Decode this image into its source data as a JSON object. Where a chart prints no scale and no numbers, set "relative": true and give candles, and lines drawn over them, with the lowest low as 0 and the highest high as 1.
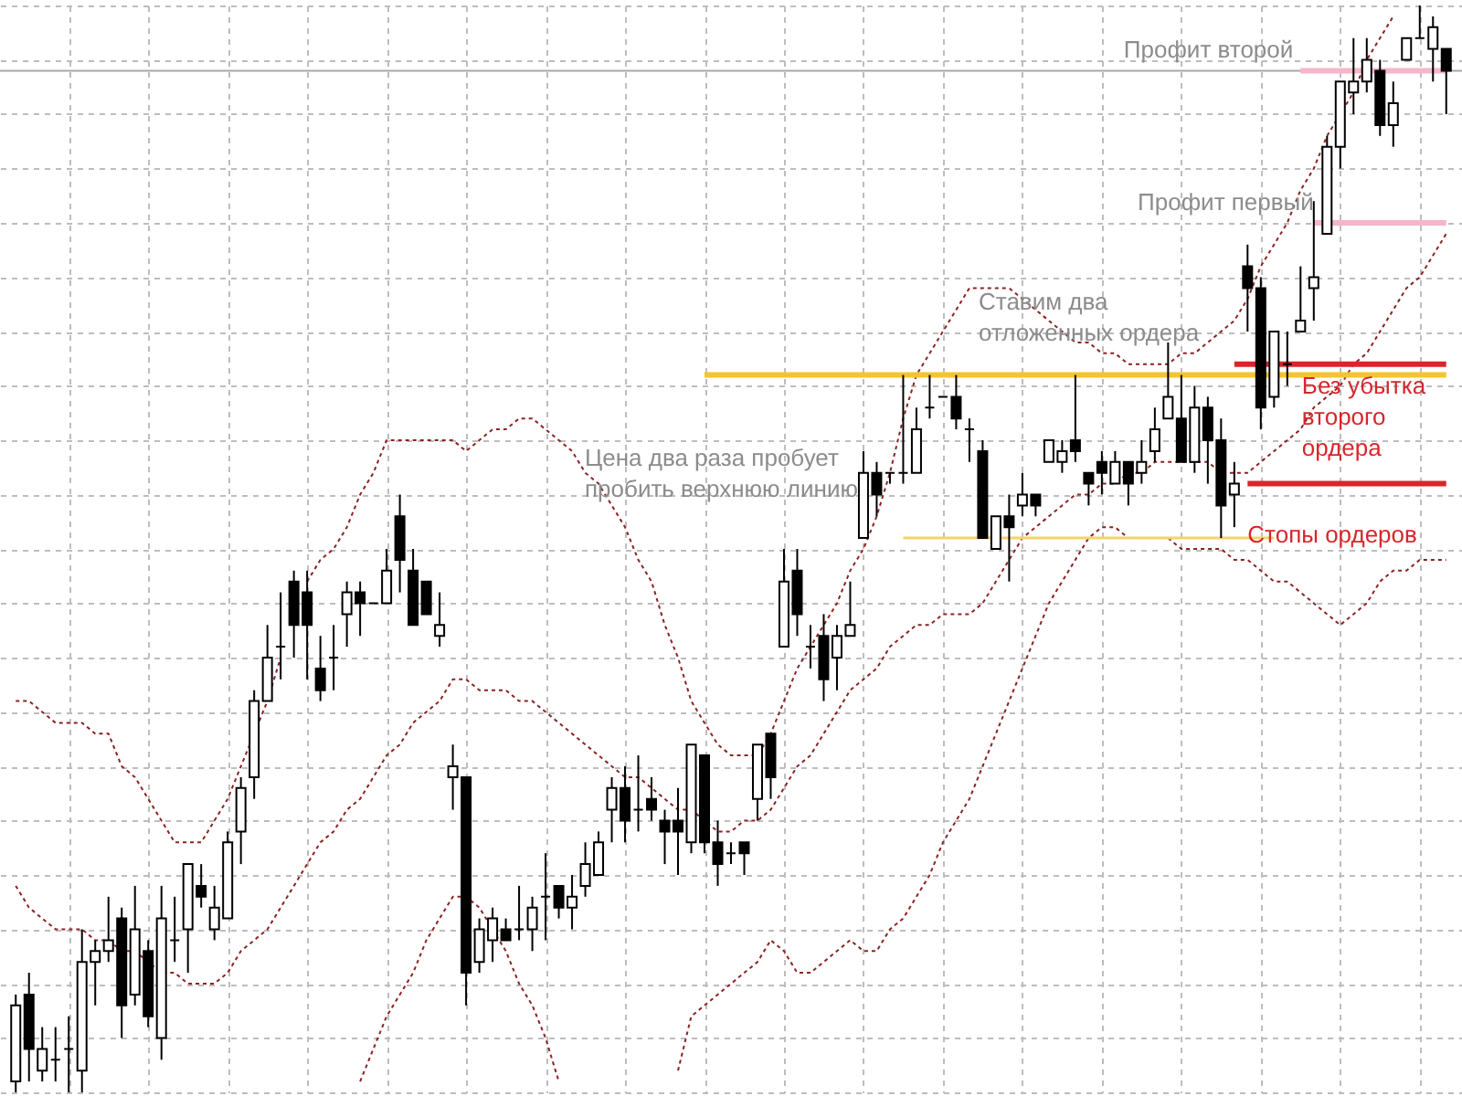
{
  "chart_data": {
    "type": "candlestick",
    "relative": true,
    "grid": true,
    "categories": [
      null,
      null,
      null,
      null,
      null,
      null,
      null,
      null,
      null,
      null,
      null,
      null,
      null,
      null,
      null,
      null,
      null,
      null,
      null,
      null,
      null,
      null,
      null,
      null,
      null,
      null,
      null,
      null,
      null,
      null,
      null,
      null,
      null,
      null,
      null,
      null,
      null,
      null,
      null,
      null,
      null,
      null,
      null,
      null,
      null,
      null,
      null,
      null,
      null,
      null,
      null,
      null,
      null,
      null,
      null,
      null,
      null,
      null,
      null,
      null,
      null,
      null,
      null,
      null,
      null,
      null,
      null,
      null,
      null,
      null,
      null,
      null,
      null,
      null,
      null,
      null,
      null,
      null,
      null,
      null,
      null,
      null,
      null,
      null,
      null,
      null,
      null,
      null,
      null,
      null,
      null,
      null,
      null,
      null,
      null,
      null,
      null,
      null,
      null,
      null,
      null,
      null,
      null,
      null,
      null,
      null,
      null,
      null,
      null
    ],
    "ohlc": [
      [
        0.01,
        0.09,
        0,
        0.08
      ],
      [
        0.09,
        0.11,
        0.01,
        0.04
      ],
      [
        0.02,
        0.06,
        0.01,
        0.04
      ],
      [
        0.03,
        0.06,
        0.01,
        0.03
      ],
      [
        0.04,
        0.07,
        0,
        0.04
      ],
      [
        0.02,
        0.15,
        0,
        0.12
      ],
      [
        0.12,
        0.14,
        0.08,
        0.13
      ],
      [
        0.13,
        0.18,
        0.12,
        0.14
      ],
      [
        0.16,
        0.17,
        0.05,
        0.08
      ],
      [
        0.09,
        0.19,
        0.08,
        0.15
      ],
      [
        0.13,
        0.14,
        0.06,
        0.07
      ],
      [
        0.05,
        0.19,
        0.03,
        0.16
      ],
      [
        0.14,
        0.18,
        0.12,
        0.14
      ],
      [
        0.15,
        0.21,
        0.11,
        0.21
      ],
      [
        0.19,
        0.21,
        0.17,
        0.18
      ],
      [
        0.15,
        0.19,
        0.14,
        0.17
      ],
      [
        0.16,
        0.24,
        0.16,
        0.23
      ],
      [
        0.24,
        0.29,
        0.21,
        0.28
      ],
      [
        0.29,
        0.37,
        0.27,
        0.36
      ],
      [
        0.36,
        0.43,
        0.36,
        0.4
      ],
      [
        0.41,
        0.46,
        0.38,
        0.41
      ],
      [
        0.47,
        0.48,
        0.4,
        0.43
      ],
      [
        0.46,
        0.48,
        0.38,
        0.43
      ],
      [
        0.39,
        0.42,
        0.36,
        0.37
      ],
      [
        0.4,
        0.43,
        0.37,
        0.4
      ],
      [
        0.44,
        0.47,
        0.41,
        0.46
      ],
      [
        0.46,
        0.47,
        0.42,
        0.45
      ],
      [
        0.45,
        0.45,
        0.45,
        0.45
      ],
      [
        0.45,
        0.5,
        0.45,
        0.48
      ],
      [
        0.53,
        0.55,
        0.46,
        0.49
      ],
      [
        0.48,
        0.5,
        0.43,
        0.43
      ],
      [
        0.47,
        0.47,
        0.44,
        0.44
      ],
      [
        0.42,
        0.46,
        0.41,
        0.43
      ],
      [
        0.29,
        0.32,
        0.26,
        0.3
      ],
      [
        0.29,
        0.29,
        0.08,
        0.11
      ],
      [
        0.12,
        0.16,
        0.11,
        0.15
      ],
      [
        0.14,
        0.17,
        0.12,
        0.16
      ],
      [
        0.15,
        0.16,
        0.14,
        0.14
      ],
      [
        0.15,
        0.19,
        0.14,
        0.15
      ],
      [
        0.15,
        0.18,
        0.13,
        0.17
      ],
      [
        0.18,
        0.22,
        0.14,
        0.18
      ],
      [
        0.19,
        0.19,
        0.16,
        0.17
      ],
      [
        0.17,
        0.2,
        0.15,
        0.18
      ],
      [
        0.19,
        0.23,
        0.18,
        0.21
      ],
      [
        0.2,
        0.24,
        0.2,
        0.23
      ],
      [
        0.26,
        0.29,
        0.23,
        0.28
      ],
      [
        0.28,
        0.3,
        0.23,
        0.25
      ],
      [
        0.26,
        0.31,
        0.24,
        0.26
      ],
      [
        0.27,
        0.29,
        0.25,
        0.26
      ],
      [
        0.25,
        0.26,
        0.21,
        0.24
      ],
      [
        0.25,
        0.28,
        0.2,
        0.24
      ],
      [
        0.23,
        0.32,
        0.22,
        0.32
      ],
      [
        0.31,
        0.31,
        0.22,
        0.23
      ],
      [
        0.23,
        0.25,
        0.19,
        0.21
      ],
      [
        0.22,
        0.23,
        0.21,
        0.22
      ],
      [
        0.23,
        0.23,
        0.2,
        0.22
      ],
      [
        0.27,
        0.32,
        0.25,
        0.32
      ],
      [
        0.33,
        0.33,
        0.27,
        0.29
      ],
      [
        0.41,
        0.5,
        0.41,
        0.47
      ],
      [
        0.48,
        0.5,
        0.42,
        0.44
      ],
      [
        0.41,
        0.43,
        0.39,
        0.41
      ],
      [
        0.42,
        0.44,
        0.36,
        0.38
      ],
      [
        0.4,
        0.43,
        0.37,
        0.42
      ],
      [
        0.42,
        0.47,
        0.42,
        0.43
      ],
      [
        0.51,
        0.59,
        0.51,
        0.57
      ],
      [
        0.57,
        0.58,
        0.53,
        0.55
      ],
      [
        0.57,
        0.57,
        0.56,
        0.57
      ],
      [
        0.57,
        0.66,
        0.56,
        0.57
      ],
      [
        0.57,
        0.63,
        0.57,
        0.61
      ],
      [
        0.63,
        0.66,
        0.62,
        0.63
      ],
      [
        0.64,
        0.64,
        0.64,
        0.64
      ],
      [
        0.64,
        0.66,
        0.61,
        0.62
      ],
      [
        0.61,
        0.62,
        0.58,
        0.61
      ],
      [
        0.59,
        0.6,
        0.51,
        0.51
      ],
      [
        0.5,
        0.53,
        0.5,
        0.53
      ],
      [
        0.53,
        0.55,
        0.47,
        0.52
      ],
      [
        0.54,
        0.57,
        0.53,
        0.55
      ],
      [
        0.55,
        0.55,
        0.53,
        0.54
      ],
      [
        0.58,
        0.6,
        0.58,
        0.6
      ],
      [
        0.58,
        0.6,
        0.57,
        0.59
      ],
      [
        0.6,
        0.66,
        0.58,
        0.59
      ],
      [
        0.57,
        0.57,
        0.54,
        0.56
      ],
      [
        0.58,
        0.59,
        0.55,
        0.57
      ],
      [
        0.56,
        0.59,
        0.56,
        0.58
      ],
      [
        0.58,
        0.58,
        0.54,
        0.56
      ],
      [
        0.57,
        0.6,
        0.56,
        0.58
      ],
      [
        0.59,
        0.63,
        0.58,
        0.61
      ],
      [
        0.62,
        0.69,
        0.62,
        0.64
      ],
      [
        0.62,
        0.66,
        0.58,
        0.58
      ],
      [
        0.58,
        0.65,
        0.57,
        0.63
      ],
      [
        0.63,
        0.64,
        0.56,
        0.6
      ],
      [
        0.6,
        0.62,
        0.51,
        0.54
      ],
      [
        0.55,
        0.58,
        0.52,
        0.56
      ],
      [
        0.76,
        0.78,
        0.7,
        0.74
      ],
      [
        0.74,
        0.75,
        0.61,
        0.63
      ],
      [
        0.64,
        0.7,
        0.63,
        0.7
      ],
      [
        0.67,
        0.7,
        0.65,
        0.67
      ],
      [
        0.7,
        0.76,
        0.7,
        0.71
      ],
      [
        0.74,
        0.82,
        0.71,
        0.75
      ],
      [
        0.79,
        0.88,
        0.79,
        0.87
      ],
      [
        0.87,
        0.93,
        0.85,
        0.93
      ],
      [
        0.92,
        0.97,
        0.9,
        0.93
      ],
      [
        0.93,
        0.97,
        0.92,
        0.95
      ],
      [
        0.94,
        0.95,
        0.88,
        0.89
      ],
      [
        0.89,
        0.93,
        0.87,
        0.91
      ],
      [
        0.95,
        0.97,
        0.95,
        0.97
      ],
      [
        0.97,
        1,
        0.97,
        0.97
      ],
      [
        0.96,
        0.99,
        0.93,
        0.98
      ],
      [
        0.96,
        0.96,
        0.9,
        0.94
      ]
    ],
    "series": [
      {
        "type": "line",
        "color": "#8b2323",
        "line_style": "dotted",
        "values": [
          0.36,
          0.36,
          0.35,
          0.34,
          0.34,
          0.34,
          0.33,
          0.33,
          0.3,
          0.29,
          0.27,
          0.25,
          0.23,
          0.23,
          0.23,
          0.25,
          0.27,
          0.3,
          0.33,
          0.36,
          0.4,
          null,
          0.47,
          0.49,
          0.5,
          0.52,
          0.55,
          0.57,
          0.6,
          0.6,
          0.6,
          0.6,
          0.6,
          0.6,
          0.59,
          0.6,
          0.61,
          0.61,
          0.62,
          0.62,
          0.61,
          0.6,
          0.59,
          0.57,
          0.56,
          0.54,
          0.52,
          0.49,
          0.47,
          0.43,
          0.4,
          0.36,
          0.34,
          0.32,
          0.31,
          0.31,
          0.31,
          0.33,
          0.36,
          0.39,
          0.41,
          0.43,
          0.45,
          0.48,
          0.5,
          0.53,
          0.57,
          0.62,
          0.66,
          0.68,
          0.7,
          0.72,
          0.74,
          0.74,
          0.74,
          0.74,
          0.73,
          0.72,
          0.71,
          0.7,
          0.69,
          0.69,
          0.68,
          0.68,
          0.67,
          0.67,
          0.67,
          0.67,
          0.68,
          0.68,
          0.69,
          0.7,
          0.71,
          0.73,
          0.76,
          0.78,
          0.8,
          0.83,
          0.85,
          0.88,
          0.9,
          0.92,
          0.95,
          0.97,
          0.99,
          null,
          null,
          null,
          null
        ]
      },
      {
        "type": "line",
        "color": "#8b2323",
        "line_style": "dotted",
        "values": [
          0.19,
          0.17,
          0.16,
          0.15,
          0.15,
          0.15,
          0.14,
          0.14,
          0.13,
          0.13,
          0.12,
          0.11,
          0.11,
          0.1,
          0.1,
          0.1,
          0.11,
          0.13,
          0.14,
          0.15,
          0.17,
          0.19,
          0.21,
          0.23,
          0.24,
          0.26,
          0.27,
          0.29,
          0.31,
          0.32,
          0.34,
          0.35,
          0.36,
          0.38,
          0.38,
          0.37,
          0.37,
          0.37,
          0.36,
          0.36,
          0.35,
          0.34,
          0.33,
          0.32,
          0.31,
          0.3,
          0.29,
          0.29,
          0.28,
          0.27,
          0.26,
          0.26,
          0.25,
          0.24,
          0.24,
          0.25,
          0.25,
          0.26,
          0.28,
          0.3,
          0.31,
          0.33,
          0.35,
          0.37,
          0.38,
          0.39,
          0.41,
          0.42,
          0.43,
          0.43,
          0.44,
          0.44,
          0.44,
          0.45,
          0.47,
          0.49,
          0.51,
          0.52,
          0.53,
          0.54,
          0.55,
          0.55,
          0.56,
          0.56,
          0.57,
          0.57,
          0.58,
          0.58,
          0.58,
          0.58,
          0.58,
          0.57,
          0.57,
          0.57,
          0.58,
          0.59,
          0.6,
          0.61,
          0.63,
          0.64,
          0.65,
          0.67,
          0.68,
          0.7,
          0.72,
          0.74,
          0.75,
          0.77,
          0.79
        ]
      },
      {
        "type": "line",
        "color": "#8b2323",
        "line_style": "dotted",
        "values": [
          null,
          null,
          null,
          null,
          null,
          null,
          null,
          null,
          null,
          null,
          null,
          null,
          null,
          null,
          null,
          null,
          null,
          null,
          null,
          null,
          null,
          null,
          null,
          null,
          null,
          null,
          0.01,
          0.04,
          0.07,
          0.09,
          0.11,
          0.14,
          0.16,
          0.18,
          0.18,
          0.17,
          0.15,
          0.13,
          0.1,
          0.08,
          0.05,
          0.01,
          null,
          null,
          null,
          null,
          null,
          null,
          null,
          null,
          0.02,
          0.07,
          0.08,
          0.09,
          0.1,
          0.11,
          0.12,
          0.14,
          0.13,
          0.11,
          0.11,
          0.12,
          0.13,
          0.14,
          0.13,
          0.13,
          0.15,
          0.16,
          0.18,
          0.2,
          0.23,
          0.25,
          0.27,
          0.3,
          0.33,
          0.36,
          0.39,
          0.42,
          0.45,
          0.47,
          0.49,
          0.51,
          0.52,
          0.52,
          0.51,
          null,
          null,
          0.51,
          0.5,
          0.5,
          0.5,
          0.5,
          0.49,
          0.49,
          0.48,
          0.47,
          0.47,
          0.46,
          0.45,
          0.44,
          0.43,
          0.44,
          0.45,
          0.47,
          0.48,
          0.48,
          0.49,
          0.49,
          0.49
        ]
      },
      {
        "type": "line",
        "color": "#f2d46b",
        "values": [
          null,
          null,
          null,
          null,
          null,
          null,
          null,
          null,
          null,
          null,
          null,
          null,
          null,
          null,
          null,
          null,
          null,
          null,
          null,
          null,
          null,
          null,
          null,
          null,
          null,
          null,
          null,
          null,
          null,
          null,
          null,
          null,
          null,
          null,
          null,
          null,
          null,
          null,
          null,
          null,
          null,
          null,
          null,
          null,
          null,
          null,
          null,
          null,
          null,
          null,
          null,
          null,
          null,
          null,
          null,
          null,
          null,
          null,
          null,
          null,
          null,
          null,
          null,
          null,
          null,
          null,
          null,
          0.51,
          0.51,
          0.51,
          0.51,
          0.51,
          0.51,
          0.51,
          0.51,
          0.51,
          0.51,
          0.51,
          0.51,
          0.51,
          0.51,
          0.51,
          0.51,
          0.51,
          0.51,
          0.51,
          0.51,
          0.51,
          0.51,
          0.51,
          0.51,
          0.51,
          0.51,
          0.51,
          0.51,
          0.51,
          null,
          null,
          null,
          null,
          null,
          null,
          null,
          null,
          null,
          null,
          null,
          null,
          null
        ]
      },
      {
        "type": "line",
        "name": "Ставим два отложенных ордера",
        "color": "#f4c430",
        "values": [
          null,
          null,
          null,
          null,
          null,
          null,
          null,
          null,
          null,
          null,
          null,
          null,
          null,
          null,
          null,
          null,
          null,
          null,
          null,
          null,
          null,
          null,
          null,
          null,
          null,
          null,
          null,
          null,
          null,
          null,
          null,
          null,
          null,
          null,
          null,
          null,
          null,
          null,
          null,
          null,
          null,
          null,
          null,
          null,
          null,
          null,
          null,
          null,
          null,
          null,
          null,
          null,
          0.66,
          0.66,
          0.66,
          0.66,
          0.66,
          0.66,
          0.66,
          0.66,
          0.66,
          0.66,
          0.66,
          0.66,
          0.66,
          0.66,
          0.66,
          0.66,
          0.66,
          0.66,
          0.66,
          0.66,
          0.66,
          0.66,
          0.66,
          0.66,
          0.66,
          0.66,
          0.66,
          0.66,
          0.66,
          0.66,
          0.66,
          0.66,
          0.66,
          0.66,
          0.66,
          0.66,
          0.66,
          0.66,
          0.66,
          0.66,
          0.66,
          0.66,
          0.66,
          0.66,
          0.66,
          0.66,
          0.66,
          0.66,
          0.66,
          0.66,
          0.66,
          0.66,
          0.66,
          0.66,
          0.66,
          0.66,
          0.66
        ]
      },
      {
        "type": "line",
        "name": "Без убытка второго ордера",
        "color": "#d7262b",
        "values": [
          null,
          null,
          null,
          null,
          null,
          null,
          null,
          null,
          null,
          null,
          null,
          null,
          null,
          null,
          null,
          null,
          null,
          null,
          null,
          null,
          null,
          null,
          null,
          null,
          null,
          null,
          null,
          null,
          null,
          null,
          null,
          null,
          null,
          null,
          null,
          null,
          null,
          null,
          null,
          null,
          null,
          null,
          null,
          null,
          null,
          null,
          null,
          null,
          null,
          null,
          null,
          null,
          null,
          null,
          null,
          null,
          null,
          null,
          null,
          null,
          null,
          null,
          null,
          null,
          null,
          null,
          null,
          null,
          null,
          null,
          null,
          null,
          null,
          null,
          null,
          null,
          null,
          null,
          null,
          null,
          null,
          null,
          null,
          null,
          null,
          null,
          null,
          null,
          null,
          null,
          null,
          null,
          0.67,
          0.67,
          0.67,
          0.67,
          0.67,
          0.67,
          0.67,
          0.67,
          0.67,
          0.67,
          0.67,
          0.67,
          0.67,
          0.67,
          0.67,
          0.67,
          0.67
        ]
      },
      {
        "type": "line",
        "name": "Стопы ордеров",
        "color": "#d7262b",
        "values": [
          null,
          null,
          null,
          null,
          null,
          null,
          null,
          null,
          null,
          null,
          null,
          null,
          null,
          null,
          null,
          null,
          null,
          null,
          null,
          null,
          null,
          null,
          null,
          null,
          null,
          null,
          null,
          null,
          null,
          null,
          null,
          null,
          null,
          null,
          null,
          null,
          null,
          null,
          null,
          null,
          null,
          null,
          null,
          null,
          null,
          null,
          null,
          null,
          null,
          null,
          null,
          null,
          null,
          null,
          null,
          null,
          null,
          null,
          null,
          null,
          null,
          null,
          null,
          null,
          null,
          null,
          null,
          null,
          null,
          null,
          null,
          null,
          null,
          null,
          null,
          null,
          null,
          null,
          null,
          null,
          null,
          null,
          null,
          null,
          null,
          null,
          null,
          null,
          null,
          null,
          null,
          null,
          null,
          0.56,
          0.56,
          0.56,
          0.56,
          0.56,
          0.56,
          0.56,
          0.56,
          0.56,
          0.56,
          0.56,
          0.56,
          0.56,
          0.56,
          0.56,
          0.56
        ]
      },
      {
        "type": "line",
        "name": "Профит первый",
        "color": "#f4b6c8",
        "values": [
          null,
          null,
          null,
          null,
          null,
          null,
          null,
          null,
          null,
          null,
          null,
          null,
          null,
          null,
          null,
          null,
          null,
          null,
          null,
          null,
          null,
          null,
          null,
          null,
          null,
          null,
          null,
          null,
          null,
          null,
          null,
          null,
          null,
          null,
          null,
          null,
          null,
          null,
          null,
          null,
          null,
          null,
          null,
          null,
          null,
          null,
          null,
          null,
          null,
          null,
          null,
          null,
          null,
          null,
          null,
          null,
          null,
          null,
          null,
          null,
          null,
          null,
          null,
          null,
          null,
          null,
          null,
          null,
          null,
          null,
          null,
          null,
          null,
          null,
          null,
          null,
          null,
          null,
          null,
          null,
          null,
          null,
          null,
          null,
          null,
          null,
          null,
          null,
          null,
          null,
          null,
          null,
          null,
          null,
          null,
          null,
          null,
          null,
          0.8,
          0.8,
          0.8,
          0.8,
          0.8,
          0.8,
          0.8,
          0.8,
          0.8,
          0.8,
          0.8
        ]
      },
      {
        "type": "line",
        "name": "Профит второй",
        "color": "#f4b6c8",
        "values": [
          null,
          null,
          null,
          null,
          null,
          null,
          null,
          null,
          null,
          null,
          null,
          null,
          null,
          null,
          null,
          null,
          null,
          null,
          null,
          null,
          null,
          null,
          null,
          null,
          null,
          null,
          null,
          null,
          null,
          null,
          null,
          null,
          null,
          null,
          null,
          null,
          null,
          null,
          null,
          null,
          null,
          null,
          null,
          null,
          null,
          null,
          null,
          null,
          null,
          null,
          null,
          null,
          null,
          null,
          null,
          null,
          null,
          null,
          null,
          null,
          null,
          null,
          null,
          null,
          null,
          null,
          null,
          null,
          null,
          null,
          null,
          null,
          null,
          null,
          null,
          null,
          null,
          null,
          null,
          null,
          null,
          null,
          null,
          null,
          null,
          null,
          null,
          null,
          null,
          null,
          null,
          null,
          null,
          null,
          null,
          null,
          null,
          0.94,
          0.94,
          0.94,
          0.94,
          0.94,
          0.94,
          0.94,
          0.94,
          0.94,
          0.94,
          0.94,
          0.94
        ]
      }
    ],
    "ref_lines": [
      {
        "axis": "y",
        "value": 0.94,
        "color": "#a8a8a8"
      }
    ],
    "annotations": [
      "Цена два раза пробует пробить верхнюю линию"
    ]
  }
}
